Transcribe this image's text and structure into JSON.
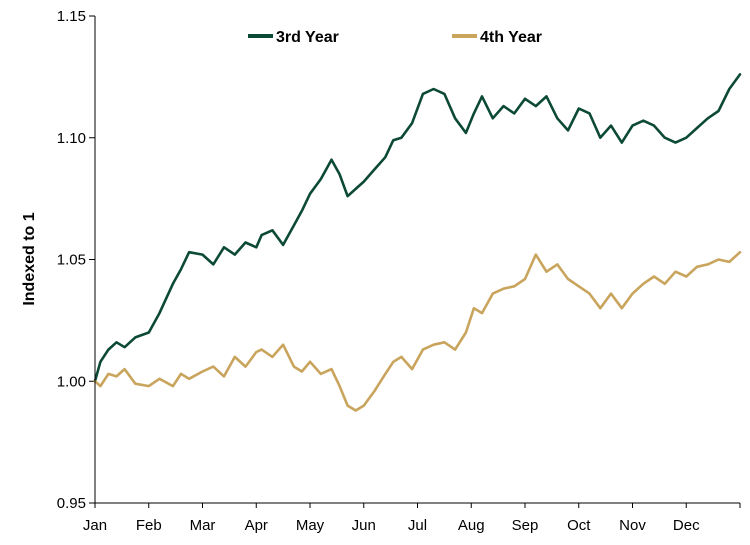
{
  "chart_data": {
    "type": "line",
    "title": "",
    "xlabel": "",
    "ylabel": "Indexed to 1",
    "ylim": [
      0.95,
      1.15
    ],
    "yticks": [
      "0.95",
      "1.00",
      "1.05",
      "1.10",
      "1.15"
    ],
    "xticks": [
      "Jan",
      "Feb",
      "Mar",
      "Apr",
      "May",
      "Jun",
      "Jul",
      "Aug",
      "Sep",
      "Oct",
      "Nov",
      "Dec"
    ],
    "grid": false,
    "legend_position": "top-center",
    "series": [
      {
        "name": "3rd Year",
        "color": "#0d4a36",
        "x": [
          0,
          0.1,
          0.25,
          0.4,
          0.55,
          0.75,
          1.0,
          1.2,
          1.45,
          1.6,
          1.75,
          2.0,
          2.2,
          2.4,
          2.6,
          2.8,
          3.0,
          3.1,
          3.3,
          3.5,
          3.7,
          3.85,
          4.0,
          4.2,
          4.4,
          4.55,
          4.7,
          4.85,
          5.0,
          5.2,
          5.4,
          5.55,
          5.7,
          5.9,
          6.1,
          6.3,
          6.5,
          6.7,
          6.9,
          7.05,
          7.2,
          7.4,
          7.6,
          7.8,
          8.0,
          8.2,
          8.4,
          8.6,
          8.8,
          9.0,
          9.2,
          9.4,
          9.6,
          9.8,
          10.0,
          10.2,
          10.4,
          10.6,
          10.8,
          11.0,
          11.2,
          11.4,
          11.6,
          11.8,
          12.0
        ],
        "values": [
          1.0,
          1.008,
          1.013,
          1.016,
          1.014,
          1.018,
          1.02,
          1.028,
          1.04,
          1.046,
          1.053,
          1.052,
          1.048,
          1.055,
          1.052,
          1.057,
          1.055,
          1.06,
          1.062,
          1.056,
          1.064,
          1.07,
          1.077,
          1.083,
          1.091,
          1.085,
          1.076,
          1.079,
          1.082,
          1.087,
          1.092,
          1.099,
          1.1,
          1.106,
          1.118,
          1.12,
          1.118,
          1.108,
          1.102,
          1.11,
          1.117,
          1.108,
          1.113,
          1.11,
          1.116,
          1.113,
          1.117,
          1.108,
          1.103,
          1.112,
          1.11,
          1.1,
          1.105,
          1.098,
          1.105,
          1.107,
          1.105,
          1.1,
          1.098,
          1.1,
          1.104,
          1.108,
          1.111,
          1.12,
          1.126
        ]
      },
      {
        "name": "4th Year",
        "color": "#c9a45c",
        "x": [
          0,
          0.1,
          0.25,
          0.4,
          0.55,
          0.75,
          1.0,
          1.2,
          1.45,
          1.6,
          1.75,
          2.0,
          2.2,
          2.4,
          2.6,
          2.8,
          3.0,
          3.1,
          3.3,
          3.5,
          3.7,
          3.85,
          4.0,
          4.2,
          4.4,
          4.55,
          4.7,
          4.85,
          5.0,
          5.2,
          5.4,
          5.55,
          5.7,
          5.9,
          6.1,
          6.3,
          6.5,
          6.7,
          6.9,
          7.05,
          7.2,
          7.4,
          7.6,
          7.8,
          8.0,
          8.2,
          8.4,
          8.6,
          8.8,
          9.0,
          9.2,
          9.4,
          9.6,
          9.8,
          10.0,
          10.2,
          10.4,
          10.6,
          10.8,
          11.0,
          11.2,
          11.4,
          11.6,
          11.8,
          12.0
        ],
        "values": [
          1.0,
          0.998,
          1.003,
          1.002,
          1.005,
          0.999,
          0.998,
          1.001,
          0.998,
          1.003,
          1.001,
          1.004,
          1.006,
          1.002,
          1.01,
          1.006,
          1.012,
          1.013,
          1.01,
          1.015,
          1.006,
          1.004,
          1.008,
          1.003,
          1.005,
          0.998,
          0.99,
          0.988,
          0.99,
          0.996,
          1.003,
          1.008,
          1.01,
          1.005,
          1.013,
          1.015,
          1.016,
          1.013,
          1.02,
          1.03,
          1.028,
          1.036,
          1.038,
          1.039,
          1.042,
          1.052,
          1.045,
          1.048,
          1.042,
          1.039,
          1.036,
          1.03,
          1.036,
          1.03,
          1.036,
          1.04,
          1.043,
          1.04,
          1.045,
          1.043,
          1.047,
          1.048,
          1.05,
          1.049,
          1.053
        ]
      }
    ]
  }
}
